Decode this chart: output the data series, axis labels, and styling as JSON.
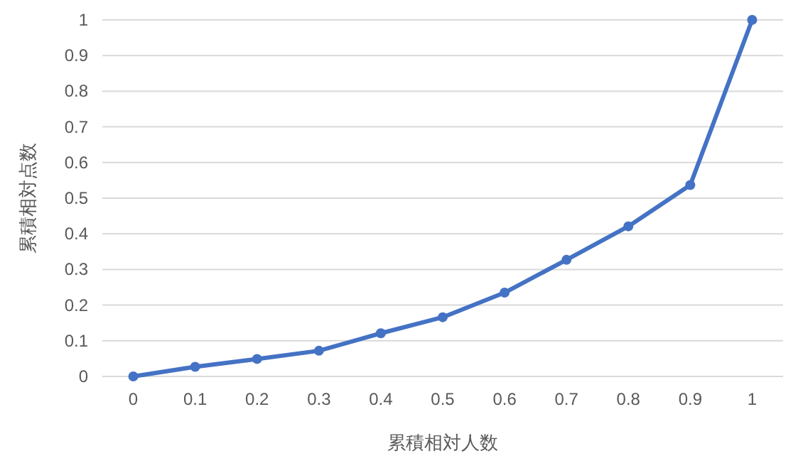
{
  "chart_data": {
    "type": "line",
    "xlabel": "累積相対人数",
    "ylabel": "累積相対点数",
    "categories": [
      "0",
      "0.1",
      "0.2",
      "0.3",
      "0.4",
      "0.5",
      "0.6",
      "0.7",
      "0.8",
      "0.9",
      "1"
    ],
    "series": [
      {
        "color": "#4472c4",
        "values": [
          0,
          0.027,
          0.049,
          0.072,
          0.121,
          0.166,
          0.235,
          0.327,
          0.421,
          0.537,
          1
        ]
      }
    ],
    "ylim": [
      0,
      1
    ],
    "yticks": [
      0,
      0.1,
      0.2,
      0.3,
      0.4,
      0.5,
      0.6,
      0.7,
      0.8,
      0.9,
      1
    ],
    "grid": "y",
    "marker": "circle",
    "line_style": "solid"
  }
}
